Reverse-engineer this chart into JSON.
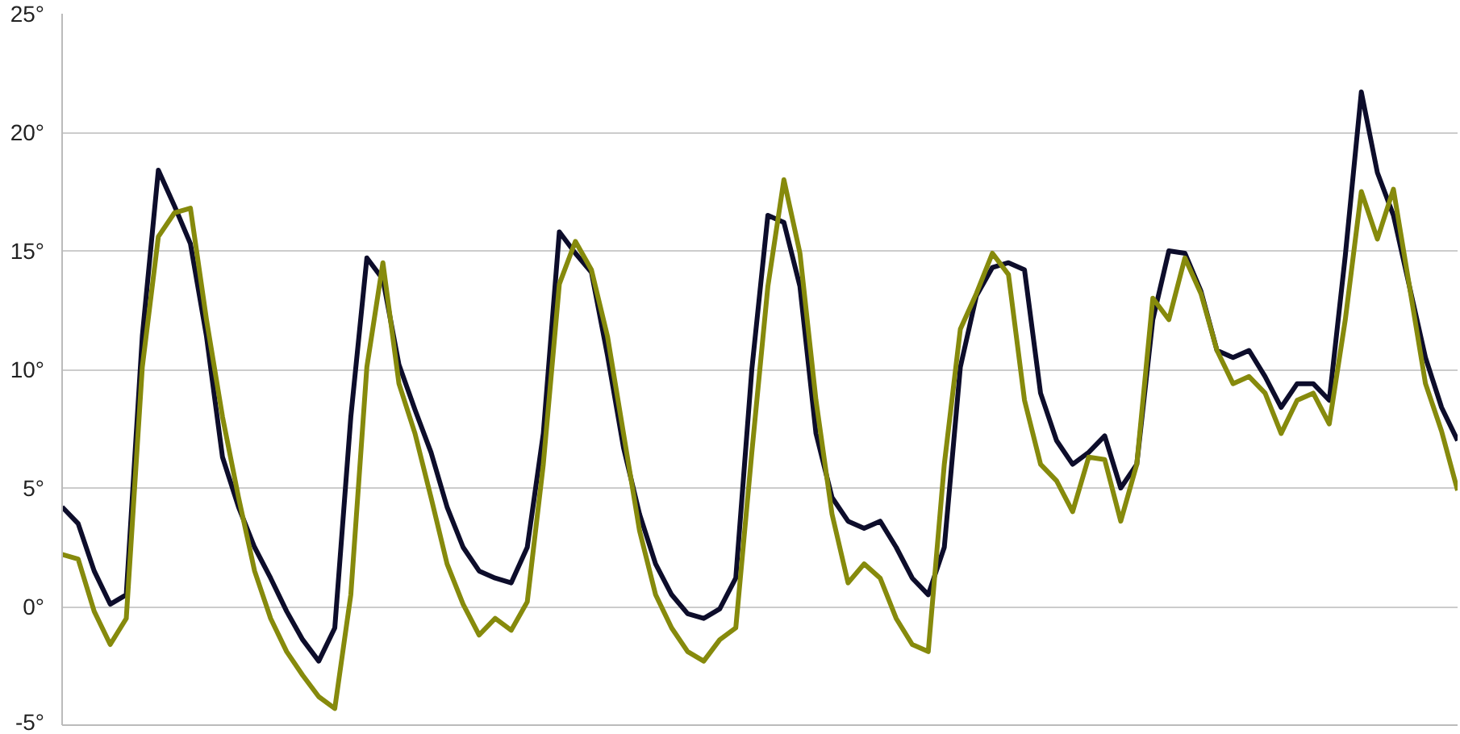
{
  "chart_data": {
    "type": "line",
    "ylim": [
      -5,
      25
    ],
    "categories": [
      null,
      null,
      null,
      null,
      null,
      null,
      null,
      null,
      null,
      null,
      null,
      null,
      null,
      null,
      null,
      null,
      null,
      null,
      null,
      null,
      null,
      null,
      null,
      null,
      null,
      null,
      null,
      null,
      null,
      null,
      null,
      null,
      null,
      null,
      null,
      null,
      null,
      null,
      null,
      null,
      null,
      null,
      null,
      null,
      null,
      null,
      null,
      null,
      null,
      null,
      null,
      null,
      null,
      null,
      null,
      null,
      null,
      null,
      null,
      null,
      null,
      null,
      null,
      null,
      null,
      null,
      null,
      null,
      null,
      null,
      null,
      null,
      null,
      null,
      null,
      null,
      null,
      null,
      null,
      null,
      null,
      null,
      null,
      null,
      null,
      null,
      null,
      null
    ],
    "yticks": [
      {
        "value": -5,
        "label": "-5°"
      },
      {
        "value": 0,
        "label": "0°"
      },
      {
        "value": 5,
        "label": "5°"
      },
      {
        "value": 10,
        "label": "10°"
      },
      {
        "value": 15,
        "label": "15°"
      },
      {
        "value": 20,
        "label": "20°"
      },
      {
        "value": 25,
        "label": "25°"
      }
    ],
    "tick_labels": "y",
    "grid": "y",
    "line_style": "solid",
    "series": [
      {
        "color": "#0d0d2b",
        "values": [
          4.2,
          3.5,
          1.5,
          0.1,
          0.5,
          11.4,
          18.4,
          16.9,
          15.3,
          11.4,
          6.3,
          4.2,
          2.5,
          1.2,
          -0.2,
          -1.4,
          -2.3,
          -0.9,
          8.0,
          14.7,
          13.8,
          10.2,
          8.3,
          6.5,
          4.2,
          2.5,
          1.5,
          1.2,
          1.0,
          2.5,
          7.3,
          15.8,
          14.9,
          14.1,
          10.6,
          6.7,
          3.9,
          1.8,
          0.5,
          -0.3,
          -0.5,
          -0.1,
          1.2,
          10.0,
          16.5,
          16.2,
          13.5,
          7.3,
          4.6,
          3.6,
          3.3,
          3.6,
          2.5,
          1.2,
          0.5,
          2.5,
          10.1,
          13.1,
          14.3,
          14.5,
          14.2,
          9.0,
          7.0,
          6.0,
          6.5,
          7.2,
          5.0,
          6.0,
          12.1,
          15.0,
          14.9,
          13.3,
          10.8,
          10.5,
          10.8,
          9.7,
          8.4,
          9.4,
          9.4,
          8.7,
          14.8,
          21.7,
          18.3,
          16.5,
          13.5,
          10.5,
          8.4,
          7.0
        ]
      },
      {
        "color": "#868a0c",
        "values": [
          2.2,
          2.0,
          -0.2,
          -1.6,
          -0.5,
          10.1,
          15.6,
          16.6,
          16.8,
          12.1,
          8.0,
          4.6,
          1.5,
          -0.5,
          -1.9,
          -2.9,
          -3.8,
          -4.3,
          0.5,
          10.1,
          14.5,
          9.4,
          7.3,
          4.6,
          1.8,
          0.1,
          -1.2,
          -0.5,
          -1.0,
          0.2,
          6.0,
          13.6,
          15.4,
          14.2,
          11.4,
          7.3,
          3.2,
          0.5,
          -0.9,
          -1.9,
          -2.3,
          -1.4,
          -0.9,
          6.5,
          13.5,
          18.0,
          14.9,
          8.7,
          3.9,
          1.0,
          1.8,
          1.2,
          -0.5,
          -1.6,
          -1.9,
          6.0,
          11.7,
          13.2,
          14.9,
          14.0,
          8.7,
          6.0,
          5.3,
          4.0,
          6.3,
          6.2,
          3.6,
          6.0,
          13.0,
          12.1,
          14.7,
          13.2,
          10.8,
          9.4,
          9.7,
          9.0,
          7.3,
          8.7,
          9.0,
          7.7,
          12.1,
          17.5,
          15.5,
          17.6,
          13.5,
          9.4,
          7.4,
          4.9
        ]
      }
    ]
  }
}
